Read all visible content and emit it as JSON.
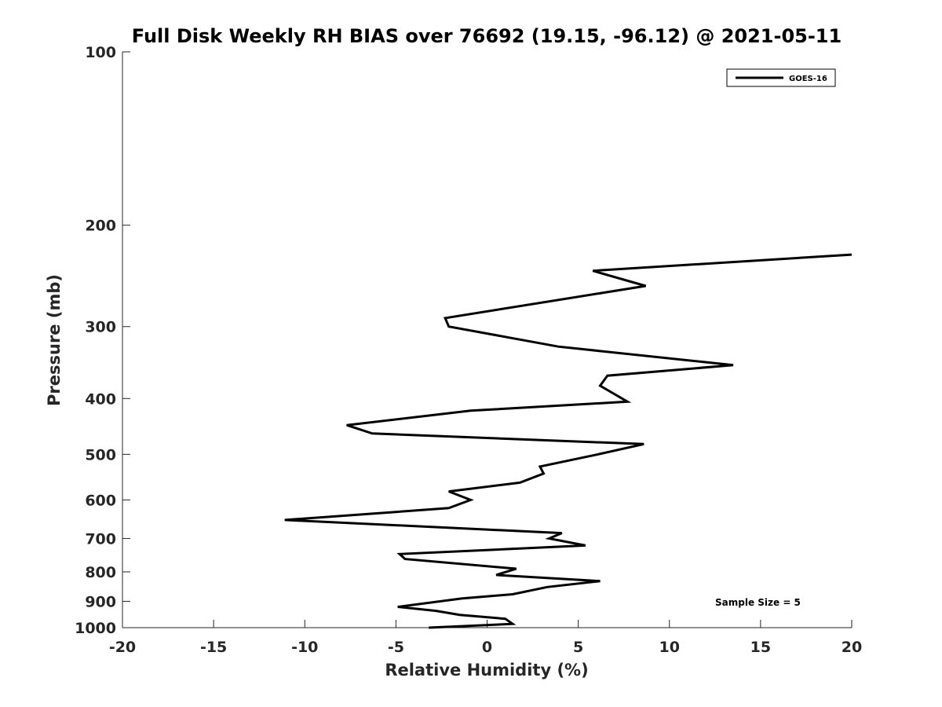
{
  "chart_data": {
    "type": "line",
    "title": "Full Disk Weekly RH BIAS over 76692 (19.15, -96.12) @ 2021-05-11",
    "xlabel": "Relative Humidity (%)",
    "ylabel": "Pressure (mb)",
    "xlim": [
      -20,
      20
    ],
    "ylim": [
      100,
      1000
    ],
    "y_scale": "log",
    "y_reversed": true,
    "xticks": [
      "-20",
      "-15",
      "-10",
      "-5",
      "0",
      "5",
      "10",
      "15",
      "20"
    ],
    "yticks": [
      "100",
      "200",
      "300",
      "400",
      "500",
      "600",
      "700",
      "800",
      "900",
      "1000"
    ],
    "grid": false,
    "legend_position": "top-right",
    "annotation": "Sample Size = 5",
    "series": [
      {
        "name": "GOES-16",
        "color": "#000000",
        "x": [
          20,
          5.8,
          8.7,
          -2.3,
          -2.1,
          3.9,
          13.5,
          6.6,
          6.2,
          7.7,
          -0.9,
          -7.7,
          -6.3,
          8.6,
          6.1,
          2.9,
          3.1,
          1.8,
          -2.1,
          -0.9,
          -2.1,
          -11.1,
          4.1,
          3.4,
          5.4,
          -4.8,
          -4.5,
          1.6,
          0.5,
          6.2,
          3.3,
          1.4,
          -1.4,
          -4.9,
          -2.8,
          -1.5,
          1.0,
          1.4,
          -3.2
        ],
        "y": [
          225,
          240,
          255,
          290,
          300,
          325,
          350,
          365,
          380,
          405,
          420,
          445,
          460,
          480,
          500,
          525,
          540,
          560,
          580,
          600,
          620,
          650,
          685,
          700,
          720,
          745,
          760,
          790,
          810,
          830,
          850,
          875,
          890,
          920,
          935,
          950,
          965,
          985,
          1000
        ]
      }
    ]
  }
}
